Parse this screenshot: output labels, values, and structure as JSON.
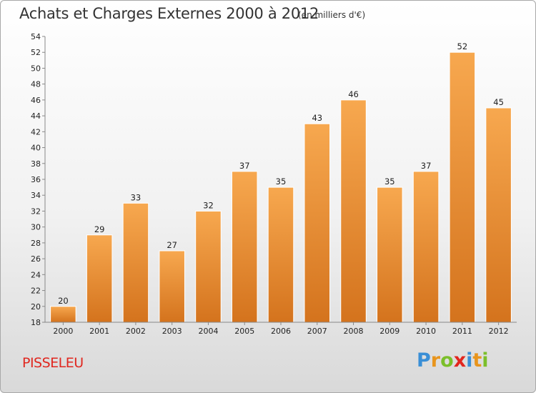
{
  "header": {
    "title": "Achats et Charges Externes 2000 à 2012",
    "unit": "(en milliers d'€)"
  },
  "footer": {
    "commune": "PISSELEU",
    "logo_text": "Proxiti",
    "logo_colors": [
      "#3a8fd6",
      "#e8951d",
      "#7bbf2a",
      "#e2261e",
      "#3a8fd6",
      "#e8951d",
      "#7bbf2a"
    ]
  },
  "colors": {
    "bar_light": "#f7a84f",
    "bar_dark": "#d4731d",
    "axis": "#888888",
    "grid": "#dddddd"
  },
  "chart_data": {
    "type": "bar",
    "title": "Achats et Charges Externes 2000 à 2012",
    "subtitle": "(en milliers d'€)",
    "categories": [
      "2000",
      "2001",
      "2002",
      "2003",
      "2004",
      "2005",
      "2006",
      "2007",
      "2008",
      "2009",
      "2010",
      "2011",
      "2012"
    ],
    "values": [
      20,
      29,
      33,
      27,
      32,
      37,
      35,
      43,
      46,
      35,
      37,
      52,
      45
    ],
    "ylim": [
      18,
      54
    ],
    "yticks": [
      18,
      20,
      22,
      24,
      26,
      28,
      30,
      32,
      34,
      36,
      38,
      40,
      42,
      44,
      46,
      48,
      50,
      52,
      54
    ],
    "grid": false,
    "data_labels": true
  }
}
